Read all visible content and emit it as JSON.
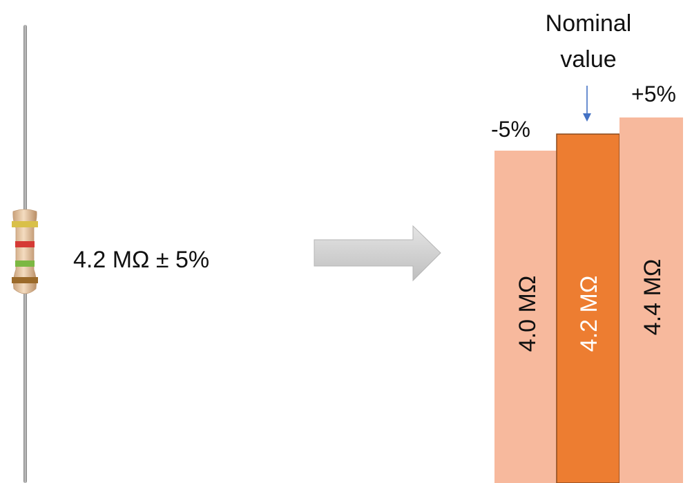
{
  "resistor": {
    "value_label": "4.2 MΩ ± 5%",
    "band_colors": [
      "#d9c049",
      "#d53a35",
      "#7cb843",
      "#9b6a2a"
    ],
    "body_color": "#e8c6a0",
    "lead_color": "#9c9c9c"
  },
  "arrow": {
    "color": "#d0d0d0"
  },
  "bars": [
    {
      "value_label": "4.0 MΩ",
      "top_label": "-5%",
      "color": "#f7b99d",
      "text_color": "#111111"
    },
    {
      "value_label": "4.2 MΩ",
      "top_label": "",
      "color": "#ed7d31",
      "text_color": "#ffffff"
    },
    {
      "value_label": "4.4 MΩ",
      "top_label": "+5%",
      "color": "#f7b99d",
      "text_color": "#111111"
    }
  ],
  "nominal": {
    "line1": "Nominal",
    "line2": "value",
    "arrow_color": "#4472c4"
  }
}
